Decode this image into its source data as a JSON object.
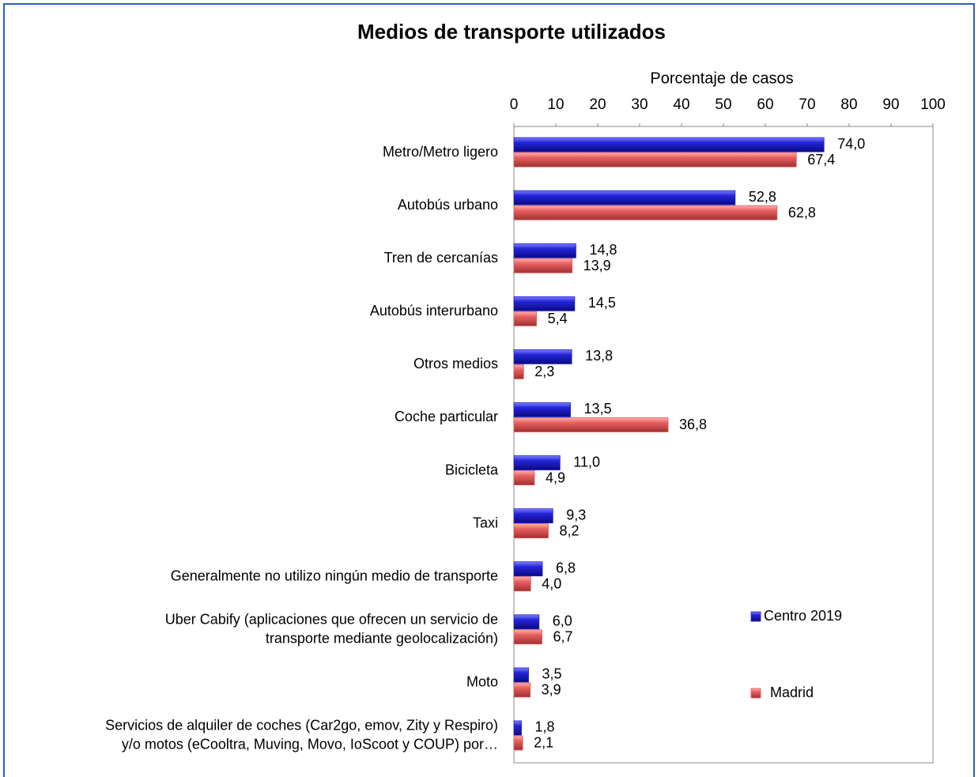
{
  "chart_data": {
    "type": "hbar",
    "title": "Medios de transporte utilizados",
    "x_label": "Porcentaje de casos",
    "categories": [
      [
        "Metro/Metro ligero"
      ],
      [
        "Autobús urbano"
      ],
      [
        "Tren de cercanías"
      ],
      [
        "Autobús interurbano"
      ],
      [
        "Otros medios"
      ],
      [
        "Coche particular"
      ],
      [
        "Bicicleta"
      ],
      [
        "Taxi"
      ],
      [
        "Generalmente no utilizo ningún medio de transporte"
      ],
      [
        "Uber Cabify (aplicaciones que ofrecen un servicio de",
        "transporte mediante geolocalización)"
      ],
      [
        "Moto"
      ],
      [
        "Servicios de alquiler de coches (Car2go, emov, Zity y Respiro)",
        "y/o motos (eCooltra, Muving, Movo, IoScoot y COUP) por…"
      ]
    ],
    "series": [
      {
        "name": "Centro 2019",
        "color": "#2222cc",
        "values": [
          74.0,
          52.8,
          14.8,
          14.5,
          13.8,
          13.5,
          11.0,
          9.3,
          6.8,
          6.0,
          3.5,
          1.8
        ],
        "value_labels": [
          "74,0",
          "52,8",
          "14,8",
          "14,5",
          "13,8",
          "13,5",
          "11,0",
          "9,3",
          "6,8",
          "6,0",
          "3,5",
          "1,8"
        ]
      },
      {
        "name": "Madrid",
        "color": "#e05a5a",
        "values": [
          67.4,
          62.8,
          13.9,
          5.4,
          2.3,
          36.8,
          4.9,
          8.2,
          4.0,
          6.7,
          3.9,
          2.1
        ],
        "value_labels": [
          "67,4",
          "62,8",
          "13,9",
          "5,4",
          "2,3",
          "36,8",
          "4,9",
          "8,2",
          "4,0",
          "6,7",
          "3,9",
          "2,1"
        ]
      }
    ],
    "xlim": [
      0,
      100
    ],
    "xticks": [
      0,
      10,
      20,
      30,
      40,
      50,
      60,
      70,
      80,
      90,
      100
    ],
    "legend": "right"
  }
}
